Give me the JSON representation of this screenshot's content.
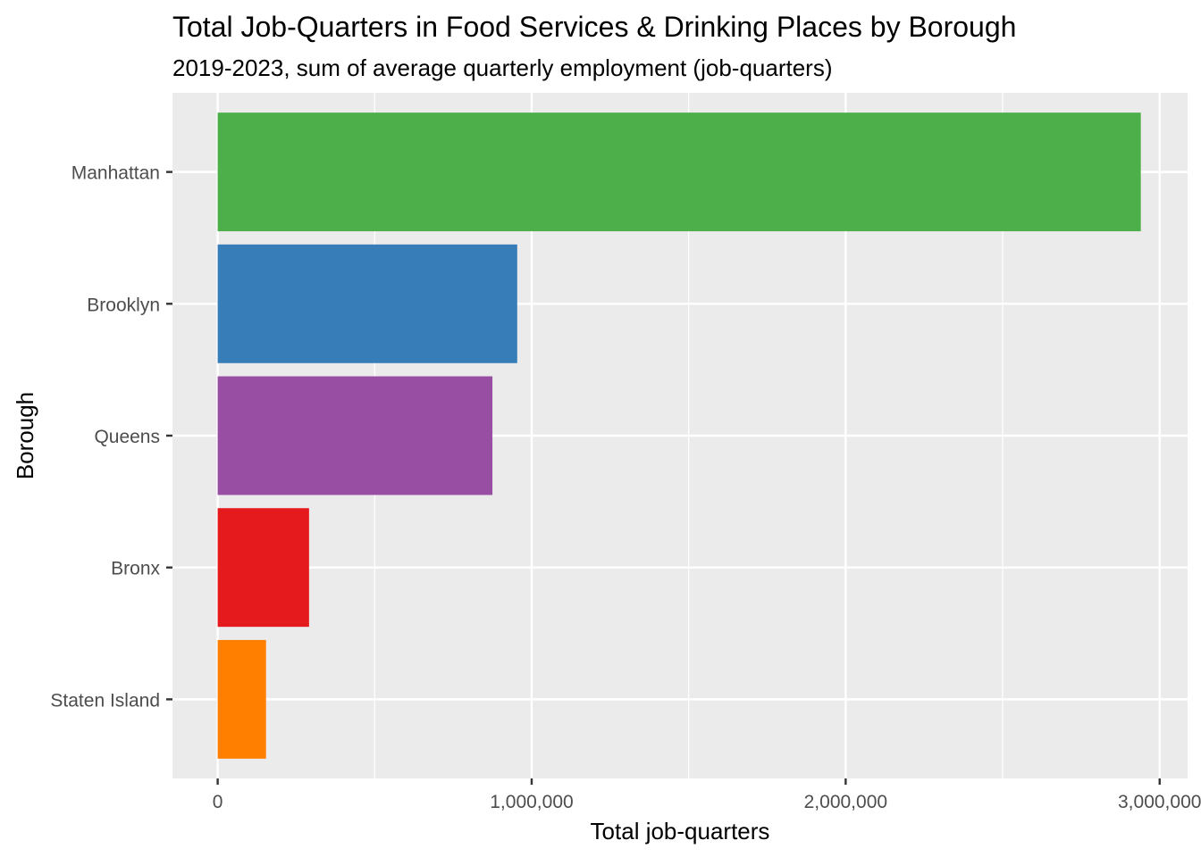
{
  "chart_data": {
    "type": "bar",
    "orientation": "horizontal",
    "title": "Total Job-Quarters in Food Services & Drinking Places by Borough",
    "subtitle": "2019-2023, sum of average quarterly employment (job-quarters)",
    "xlabel": "Total job-quarters",
    "ylabel": "Borough",
    "categories": [
      "Manhattan",
      "Brooklyn",
      "Queens",
      "Bronx",
      "Staten Island"
    ],
    "values": [
      2940000,
      954000,
      875000,
      291000,
      154000
    ],
    "colors": [
      "#4DAF4A",
      "#377EB8",
      "#984EA3",
      "#E41A1C",
      "#FF7F00"
    ],
    "xlim": [
      -144000,
      3089000
    ],
    "xticks": [
      0,
      1000000,
      2000000,
      3000000
    ],
    "xtick_labels": [
      "0",
      "1,000,000",
      "2,000,000",
      "3,000,000"
    ],
    "grid": true,
    "legend": "none"
  }
}
